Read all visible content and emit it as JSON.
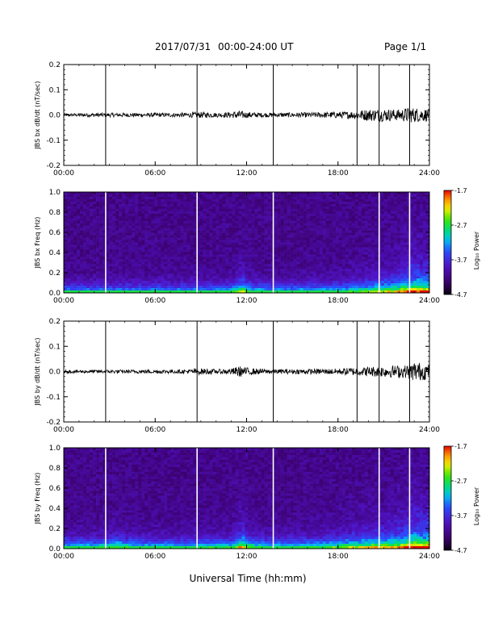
{
  "header": {
    "date": "2017/07/31",
    "time_range": "00:00-24:00 UT",
    "page": "Page 1/1"
  },
  "xlabel": "Universal Time (hh:mm)",
  "colorbar": {
    "ticks": [
      "-1.7",
      "-2.7",
      "-3.7",
      "-4.7"
    ],
    "label": "Log₁₀ Power",
    "min": -4.7,
    "max": -1.7
  },
  "chart_data": [
    {
      "type": "line",
      "ylabel": "JBS bx dB/dt (nT/sec)",
      "xlim": [
        0,
        24
      ],
      "ylim": [
        -0.2,
        0.2
      ],
      "ytick_labels": [
        "0.2",
        "0.1",
        "0.0",
        "-0.1",
        "-0.2"
      ],
      "xtick_labels": [
        "00:00",
        "06:00",
        "12:00",
        "18:00",
        "24:00"
      ],
      "vertical_markers_hours": [
        2.75,
        8.75,
        13.75,
        19.25,
        20.7,
        22.7
      ],
      "envelope": {
        "x": [
          0,
          2,
          4,
          6,
          8,
          9,
          10,
          11,
          11.5,
          12,
          13,
          14,
          16,
          18,
          19,
          19.5,
          20,
          21,
          22,
          22.5,
          23,
          24
        ],
        "amplitude": [
          0.006,
          0.008,
          0.008,
          0.008,
          0.009,
          0.012,
          0.009,
          0.011,
          0.018,
          0.012,
          0.009,
          0.009,
          0.01,
          0.013,
          0.016,
          0.02,
          0.024,
          0.026,
          0.022,
          0.03,
          0.03,
          0.024
        ]
      }
    },
    {
      "type": "heatmap",
      "ylabel": "JBS bx Freq (Hz)",
      "xlim": [
        0,
        24
      ],
      "ylim": [
        0,
        1
      ],
      "ytick_labels": [
        "1.0",
        "0.8",
        "0.6",
        "0.4",
        "0.2",
        "0.0"
      ],
      "xtick_labels": [
        "00:00",
        "06:00",
        "12:00",
        "18:00",
        "24:00"
      ],
      "vertical_markers_hours": [
        2.75,
        8.75,
        13.75,
        20.7,
        22.7
      ],
      "colorbar_range": [
        -4.7,
        -1.7
      ],
      "activity": {
        "x": [
          0,
          3,
          6,
          9,
          11,
          11.7,
          12.3,
          14,
          18,
          20,
          21,
          22,
          23,
          24
        ],
        "level": [
          0.1,
          0.1,
          0.12,
          0.12,
          0.18,
          0.45,
          0.2,
          0.14,
          0.2,
          0.35,
          0.42,
          0.5,
          0.7,
          0.6
        ]
      }
    },
    {
      "type": "line",
      "ylabel": "JBS by dB/dt (nT/sec)",
      "xlim": [
        0,
        24
      ],
      "ylim": [
        -0.2,
        0.2
      ],
      "ytick_labels": [
        "0.2",
        "0.1",
        "0.0",
        "-0.1",
        "-0.2"
      ],
      "xtick_labels": [
        "00:00",
        "06:00",
        "12:00",
        "18:00",
        "24:00"
      ],
      "vertical_markers_hours": [
        2.75,
        8.75,
        13.75,
        19.25,
        20.7,
        22.7
      ],
      "envelope": {
        "x": [
          0,
          2,
          4,
          6,
          8,
          9,
          10,
          11,
          11.5,
          12,
          13,
          14,
          16,
          18,
          19,
          19.5,
          20,
          21,
          22,
          22.5,
          23,
          24
        ],
        "amplitude": [
          0.006,
          0.007,
          0.007,
          0.008,
          0.008,
          0.013,
          0.009,
          0.012,
          0.022,
          0.016,
          0.01,
          0.009,
          0.01,
          0.012,
          0.016,
          0.016,
          0.02,
          0.022,
          0.025,
          0.026,
          0.04,
          0.03
        ]
      }
    },
    {
      "type": "heatmap",
      "ylabel": "JBS by Freq (Hz)",
      "xlim": [
        0,
        24
      ],
      "ylim": [
        0,
        1
      ],
      "ytick_labels": [
        "1.0",
        "0.8",
        "0.6",
        "0.4",
        "0.2",
        "0.0"
      ],
      "xtick_labels": [
        "00:00",
        "06:00",
        "12:00",
        "18:00",
        "24:00"
      ],
      "vertical_markers_hours": [
        2.75,
        8.75,
        13.75,
        20.7,
        22.7
      ],
      "colorbar_range": [
        -4.7,
        -1.7
      ],
      "activity": {
        "x": [
          0,
          2,
          3.5,
          5,
          8,
          9.5,
          11,
          11.7,
          12.3,
          14,
          17,
          19,
          21,
          22,
          23,
          24
        ],
        "level": [
          0.22,
          0.2,
          0.3,
          0.2,
          0.18,
          0.25,
          0.22,
          0.55,
          0.28,
          0.2,
          0.25,
          0.4,
          0.5,
          0.55,
          0.75,
          0.7
        ]
      }
    }
  ]
}
